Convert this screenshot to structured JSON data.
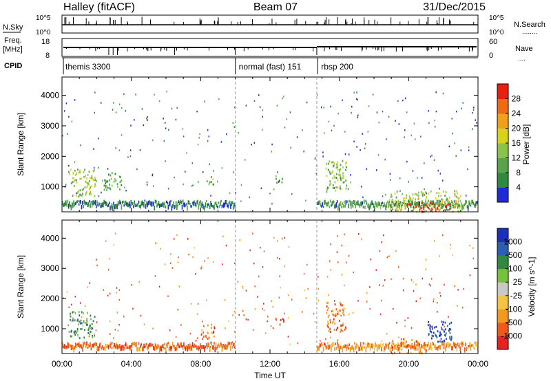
{
  "header": {
    "station": "Halley (fitACF)",
    "beam": "Beam 07",
    "date": "31/Dec/2015"
  },
  "panel_labels": {
    "nsky": "N.Sky",
    "nsearch": "N.Search",
    "freq_line1": "Freq.",
    "freq_line2": "[MHz]",
    "nave": "Nave",
    "cpid": "CPID",
    "nsky_tick_hi": "10^5",
    "nsky_tick_lo": "10^0",
    "freq_tick_hi": "18",
    "freq_tick_lo": "8",
    "nave_tick_hi": "60",
    "nave_tick_lo": "0",
    "nsearch_legend": "........",
    "nave_legend": "...."
  },
  "cpid": [
    {
      "label": "themis 3300",
      "start_hour": 0
    },
    {
      "label": "normal (fast) 151",
      "start_hour": 10
    },
    {
      "label": "rbsp 200",
      "start_hour": 14.75
    }
  ],
  "colors": {
    "power": [
      "#1f2bd6",
      "#2e8a3f",
      "#5aa34a",
      "#8bc34a",
      "#d7d21a",
      "#f2a01a",
      "#f06a12",
      "#e82010"
    ],
    "velocity": [
      "#e8231b",
      "#f05a18",
      "#f39a1c",
      "#f7c242",
      "#c8c8c8",
      "#77c23a",
      "#2f8a3f",
      "#2d5fb0",
      "#1c2fbf"
    ]
  },
  "chart_data": [
    {
      "type": "heatmap",
      "title": "",
      "xlabel": "",
      "ylabel": "Slant Range [km]",
      "xlim": [
        "00:00",
        "24:00"
      ],
      "ylim": [
        180,
        4600
      ],
      "yticks": [
        "1000",
        "2000",
        "3000",
        "4000"
      ],
      "colorbar": {
        "label": "Power [dB]",
        "ticks": [
          "4",
          "8",
          "12",
          "16",
          "20",
          "24",
          "28"
        ],
        "range": [
          0,
          30
        ]
      },
      "blobs": [
        {
          "t0": 0.35,
          "t1": 1.9,
          "r0": 700,
          "r1": 1600,
          "level": 0.45
        },
        {
          "t0": 2.4,
          "t1": 3.4,
          "r0": 900,
          "r1": 1500,
          "level": 0.3
        },
        {
          "t0": 8.3,
          "t1": 8.8,
          "r0": 1100,
          "r1": 1400,
          "level": 0.4
        },
        {
          "t0": 12.3,
          "t1": 12.8,
          "r0": 1150,
          "r1": 1400,
          "level": 0.25
        },
        {
          "t0": 15.2,
          "t1": 16.4,
          "r0": 900,
          "r1": 1900,
          "level": 0.4
        },
        {
          "t0": 18.8,
          "t1": 23.0,
          "r0": 200,
          "r1": 900,
          "level": 0.5
        },
        {
          "t0": 19.9,
          "t1": 22.4,
          "r0": 200,
          "r1": 500,
          "level": 0.95
        }
      ]
    },
    {
      "type": "heatmap",
      "title": "",
      "xlabel": "Time UT",
      "ylabel": "Slant Range [km]",
      "xlim": [
        "00:00",
        "24:00"
      ],
      "ylim": [
        180,
        4600
      ],
      "xticks": [
        "00:00",
        "04:00",
        "08:00",
        "12:00",
        "16:00",
        "20:00",
        "00:00"
      ],
      "yticks": [
        "1000",
        "2000",
        "3000",
        "4000"
      ],
      "colorbar": {
        "label": "Velocity [m s^-1]",
        "ticks": [
          "-1000",
          "-500",
          "-100",
          "-25",
          "25",
          "100",
          "500",
          "1000"
        ],
        "range": [
          -1000,
          1000
        ]
      },
      "blobs": [
        {
          "t0": 0.35,
          "t1": 1.9,
          "r0": 700,
          "r1": 1600,
          "level": 0.7
        },
        {
          "t0": 8.0,
          "t1": 8.8,
          "r0": 700,
          "r1": 1200,
          "level": 0.2
        },
        {
          "t0": 12.3,
          "t1": 12.8,
          "r0": 1150,
          "r1": 1400,
          "level": 0.05
        },
        {
          "t0": 15.2,
          "t1": 16.4,
          "r0": 900,
          "r1": 1900,
          "level": 0.2
        },
        {
          "t0": 21.0,
          "t1": 22.5,
          "r0": 600,
          "r1": 1300,
          "level": 0.9
        },
        {
          "t0": 19.0,
          "t1": 21.0,
          "r0": 200,
          "r1": 700,
          "level": 0.25
        }
      ]
    }
  ]
}
